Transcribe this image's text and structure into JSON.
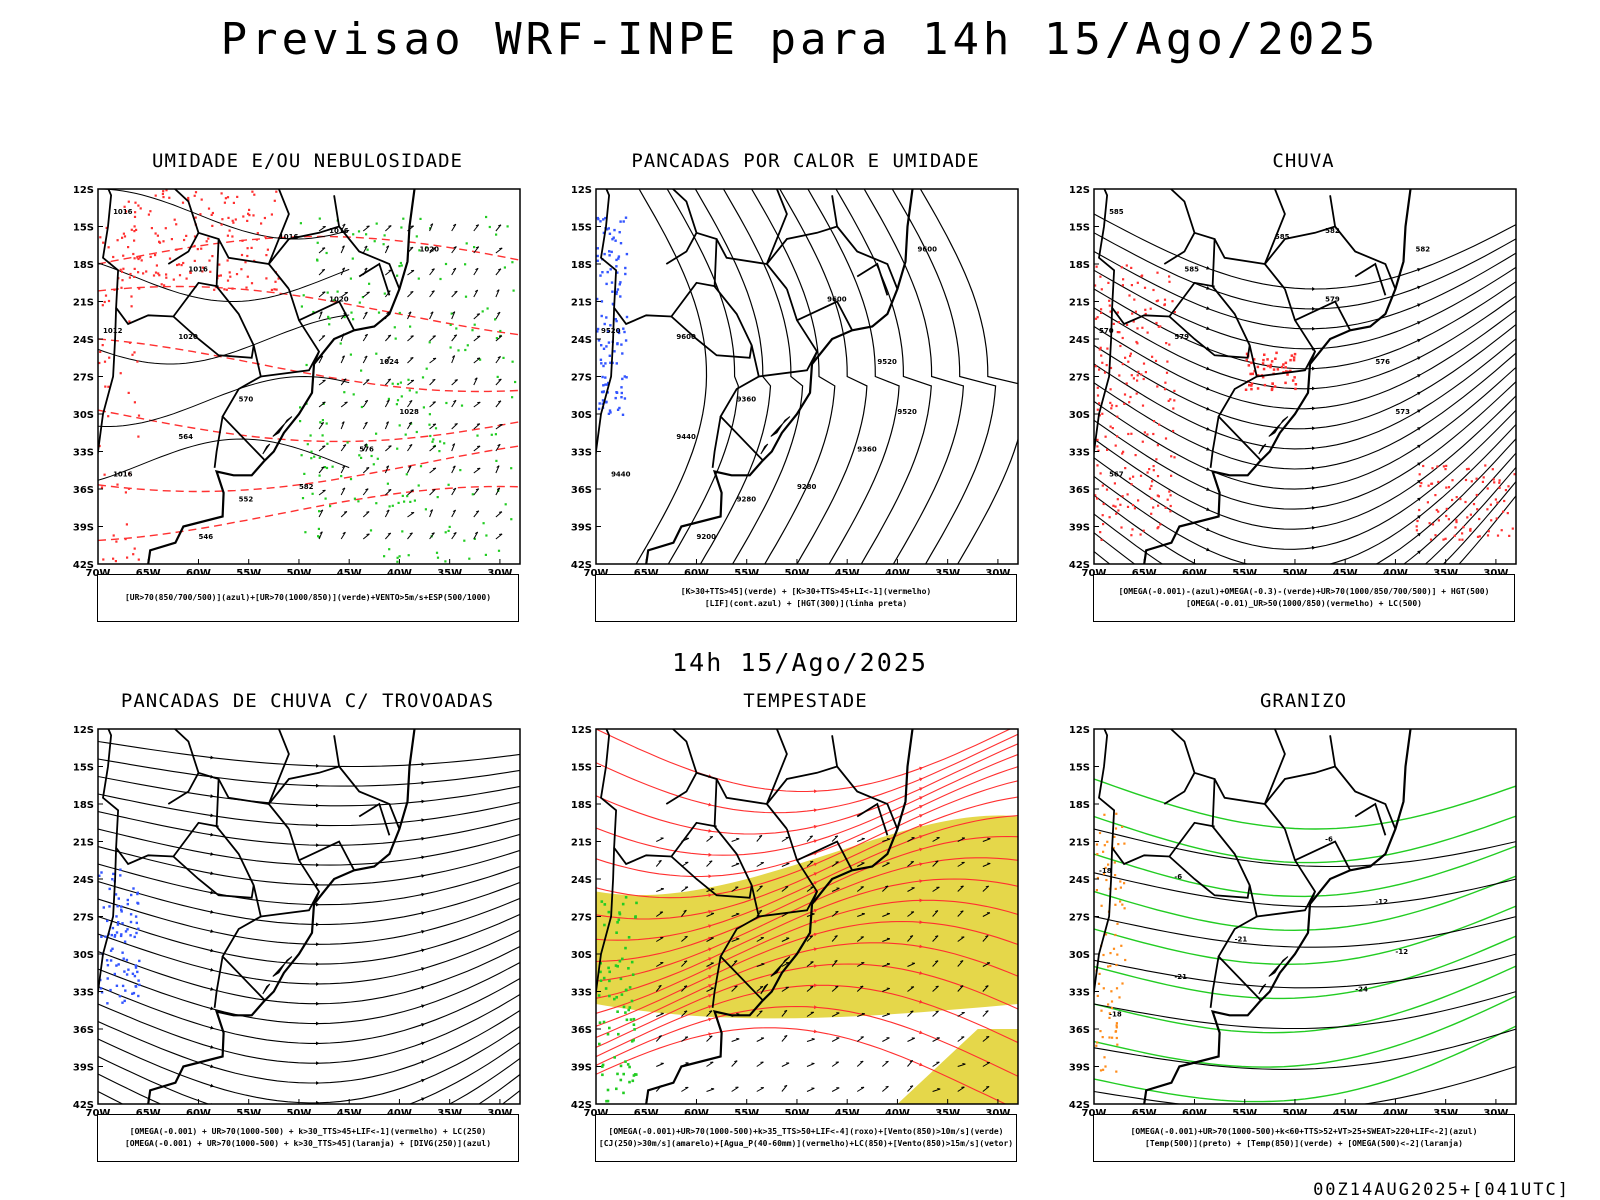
{
  "header": {
    "title": "Previsao WRF-INPE  para 14h 15/Ago/2025",
    "subtitle": "14h 15/Ago/2025",
    "footer": "00Z14AUG2025+[041UTC]"
  },
  "axes": {
    "lat_labels": [
      "12S",
      "15S",
      "18S",
      "21S",
      "24S",
      "27S",
      "30S",
      "33S",
      "36S",
      "39S",
      "42S"
    ],
    "lon_labels": [
      "70W",
      "65W",
      "60W",
      "55W",
      "50W",
      "45W",
      "40W",
      "35W",
      "30W"
    ]
  },
  "colors": {
    "red": "#ff3030",
    "green": "#22cc22",
    "blue": "#3355ff",
    "yellow": "#e0d02a",
    "black": "#000000"
  },
  "panels": [
    {
      "title": "UMIDADE E/OU NEBULOSIDADE",
      "legend": [
        "[UR>70(850/700/500)](azul)+[UR>70(1000/850)](verde)+VENTO>5m/s+ESP(500/1000)"
      ],
      "contour_labels": [
        "1016",
        "1016",
        "1016",
        "1016",
        "1020",
        "1020",
        "1020",
        "1024",
        "1028",
        "1012",
        "1016",
        "564",
        "570",
        "576",
        "582",
        "552",
        "546"
      ]
    },
    {
      "title": "PANCADAS POR CALOR E UMIDADE",
      "legend": [
        "[K>30+TTS>45](verde) + [K>30+TTS>45+LI<-1](vermelho)",
        "[LIF](cont.azul) + [HGT(300)](linha preta)"
      ],
      "contour_labels": [
        "9600",
        "9600",
        "9600",
        "9520",
        "9520",
        "9520",
        "9440",
        "9440",
        "9360",
        "9360",
        "9280",
        "9280",
        "9200"
      ]
    },
    {
      "title": "CHUVA",
      "legend": [
        "[OMEGA(-0.001)-(azul)+OMEGA(-0.3)-(verde)+UR>70(1000/850/700/500)] + HGT(500)",
        "[OMEGA(-0.01)_UR>50(1000/850)(vermelho) + LC(500)"
      ],
      "contour_labels": [
        "585",
        "585",
        "585",
        "582",
        "582",
        "579",
        "579",
        "576",
        "573",
        "570",
        "567"
      ]
    },
    {
      "title": "PANCADAS DE CHUVA C/ TROVOADAS",
      "legend": [
        "[OMEGA(-0.001) + UR>70(1000-500) + k>30_TTS>45+LIF<-1](vermelho) + LC(250)",
        "[OMEGA(-0.001) + UR>70(1000-500) + k>30_TTS>45](laranja) + [DIVG(250)](azul)"
      ],
      "contour_labels": []
    },
    {
      "title": "TEMPESTADE",
      "legend": [
        "[OMEGA(-0.001)+UR>70(1000-500)+k>35_TTS>50+LIF<-4](roxo)+[Vento(850)>10m/s](verde)",
        "[CJ(250)>30m/s](amarelo)+[Agua_P(40-60mm)](vermelho)+LC(850)+[Vento(850)>15m/s](vetor)"
      ],
      "contour_labels": []
    },
    {
      "title": "GRANIZO",
      "legend": [
        "[OMEGA(-0.001)+UR>70(1000-500)+k<60+TTS>52+VT>25+SWEAT>220+LIF<-2](azul)",
        "[Temp(500)](preto) + [Temp(850)](verde) + [OMEGA(500)<-2](laranja)"
      ],
      "contour_labels": [
        "-6",
        "-6",
        "-12",
        "-12",
        "-18",
        "-18",
        "-21",
        "-21",
        "-24"
      ]
    }
  ]
}
